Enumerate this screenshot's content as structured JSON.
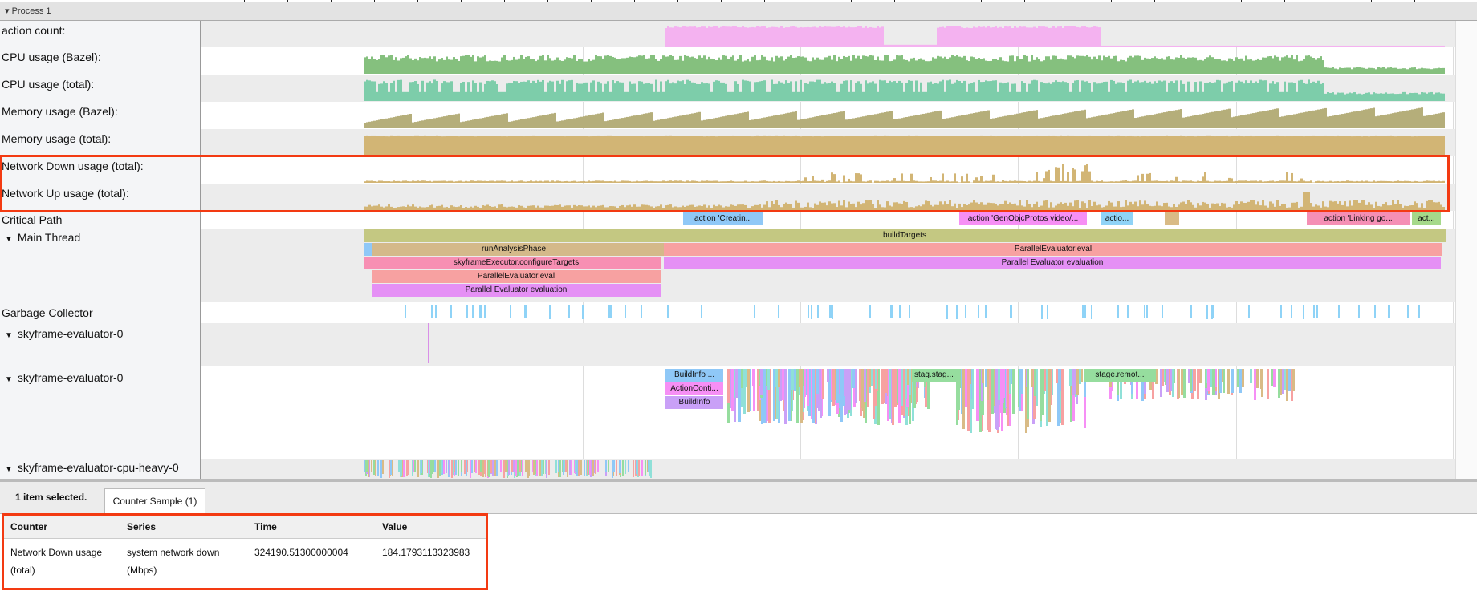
{
  "process": {
    "label": "Process 1"
  },
  "counters": [
    {
      "label": "action count:",
      "color": "#f4b2f0"
    },
    {
      "label": "CPU usage (Bazel):",
      "color": "#85c07e"
    },
    {
      "label": "CPU usage (total):",
      "color": "#7dcdaa"
    },
    {
      "label": "Memory usage (Bazel):",
      "color": "#b5ae7a"
    },
    {
      "label": "Memory usage (total):",
      "color": "#d2b575"
    },
    {
      "label": "Network Down usage (total):",
      "color": "#d2b575"
    },
    {
      "label": "Network Up usage (total):",
      "color": "#d2b575"
    }
  ],
  "critical_path": {
    "label": "Critical Path",
    "slices": [
      "action 'Creatin...",
      "action 'GenObjcProtos video/...",
      "actio...",
      "",
      "action 'Linking go...",
      "act..."
    ]
  },
  "main_thread": {
    "label": "Main Thread",
    "slices": [
      "buildTargets",
      "runAnalysisPhase",
      "ParallelEvaluator.eval",
      "skyframeExecutor.configureTargets",
      "Parallel Evaluator evaluation",
      "ParallelEvaluator.eval",
      "Parallel Evaluator evaluation"
    ]
  },
  "garbage_collector": {
    "label": "Garbage Collector"
  },
  "evaluator_a": {
    "label": "skyframe-evaluator-0"
  },
  "evaluator_b": {
    "label": "skyframe-evaluator-0",
    "slices": [
      "BuildInfo ...",
      "ActionConti...",
      "BuildInfo",
      "stag.stag...",
      "stage.remot..."
    ]
  },
  "evaluator_cpu": {
    "label": "skyframe-evaluator-cpu-heavy-0"
  },
  "details": {
    "selection": "1 item selected.",
    "tab": "Counter Sample (1)",
    "columns": [
      "Counter",
      "Series",
      "Time",
      "Value"
    ],
    "row": {
      "counter": "Network Down usage (total)",
      "series": "system network down (Mbps)",
      "time": "324190.51300000004",
      "value": "184.1793113323983"
    }
  },
  "highlight_color": "#f33a12"
}
